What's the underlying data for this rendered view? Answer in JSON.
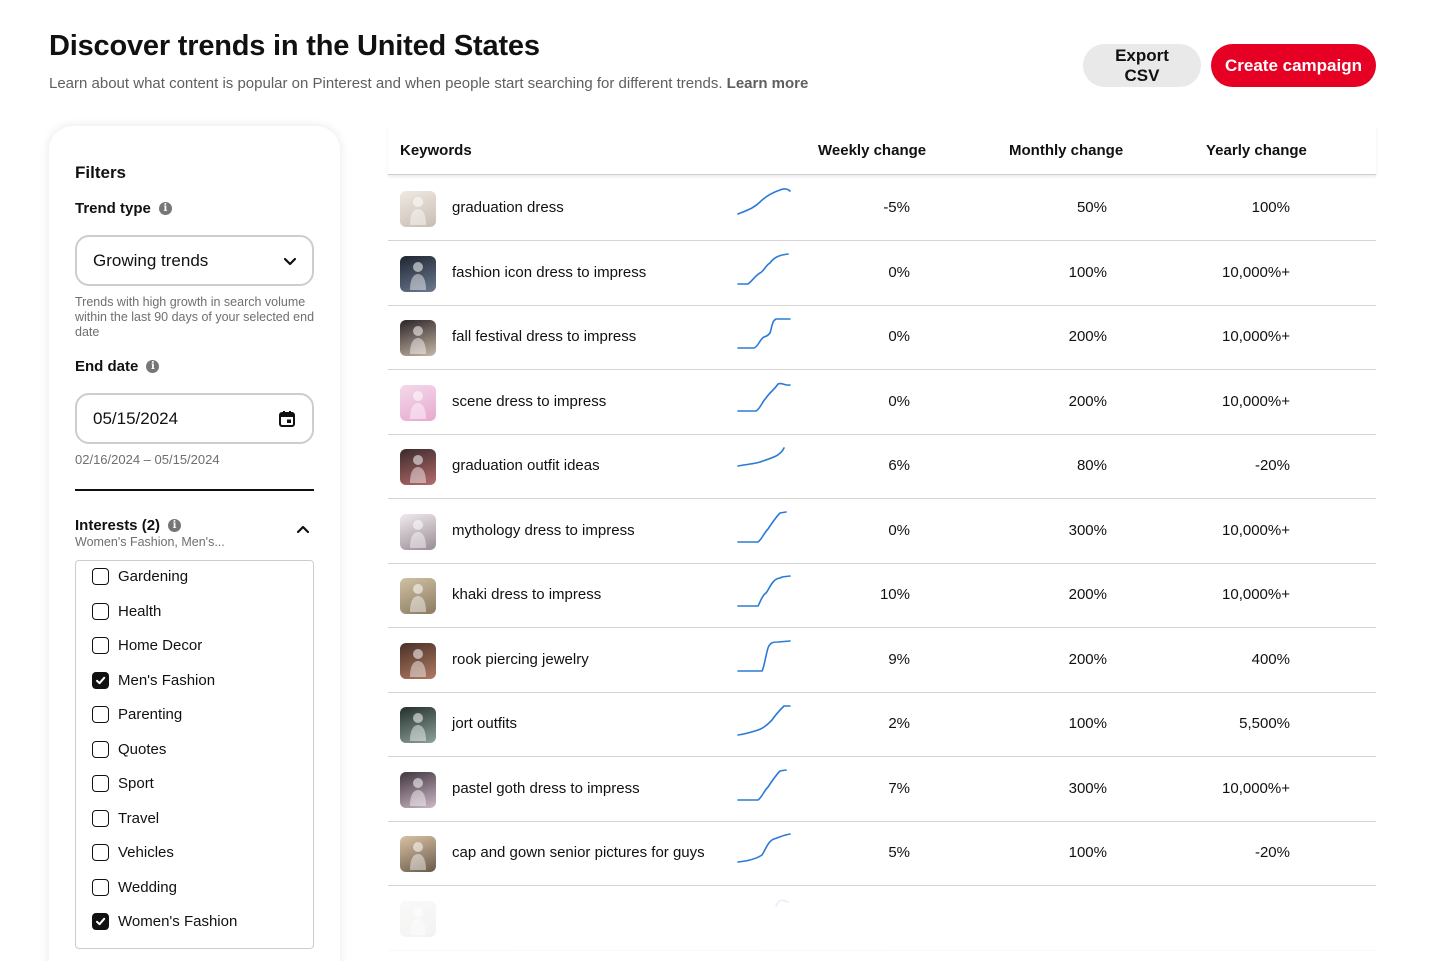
{
  "header": {
    "title": "Discover trends in the United States",
    "subtitle": "Learn about what content is popular on Pinterest and when people start searching for different trends.",
    "learn_more": "Learn more"
  },
  "actions": {
    "export_label": "Export CSV",
    "create_label": "Create campaign"
  },
  "colors": {
    "brand_red": "#e60023",
    "sparkline": "#2b7bd6"
  },
  "filters": {
    "title": "Filters",
    "trend_type_label": "Trend type",
    "trend_type_value": "Growing trends",
    "trend_type_help": "Trends with high growth in search volume within the last 90 days of your selected end date",
    "end_date_label": "End date",
    "end_date_value": "05/15/2024",
    "date_range": "02/16/2024 – 05/15/2024",
    "interests_label": "Interests (2)",
    "interests_summary": "Women's Fashion, Men's...",
    "interests": [
      {
        "label": "Gardening",
        "checked": false
      },
      {
        "label": "Health",
        "checked": false
      },
      {
        "label": "Home Decor",
        "checked": false
      },
      {
        "label": "Men's Fashion",
        "checked": true
      },
      {
        "label": "Parenting",
        "checked": false
      },
      {
        "label": "Quotes",
        "checked": false
      },
      {
        "label": "Sport",
        "checked": false
      },
      {
        "label": "Travel",
        "checked": false
      },
      {
        "label": "Vehicles",
        "checked": false
      },
      {
        "label": "Wedding",
        "checked": false
      },
      {
        "label": "Women's Fashion",
        "checked": true
      }
    ]
  },
  "table": {
    "columns": {
      "keywords": "Keywords",
      "weekly": "Weekly change",
      "monthly": "Monthly change",
      "yearly": "Yearly change"
    },
    "rows": [
      {
        "keyword": "graduation dress",
        "weekly": "-5%",
        "monthly": "50%",
        "yearly": "100%"
      },
      {
        "keyword": "fashion icon dress to impress",
        "weekly": "0%",
        "monthly": "100%",
        "yearly": "10,000%+"
      },
      {
        "keyword": "fall festival dress to impress",
        "weekly": "0%",
        "monthly": "200%",
        "yearly": "10,000%+"
      },
      {
        "keyword": "scene dress to impress",
        "weekly": "0%",
        "monthly": "200%",
        "yearly": "10,000%+"
      },
      {
        "keyword": "graduation outfit ideas",
        "weekly": "6%",
        "monthly": "80%",
        "yearly": "-20%"
      },
      {
        "keyword": "mythology dress to impress",
        "weekly": "0%",
        "monthly": "300%",
        "yearly": "10,000%+"
      },
      {
        "keyword": "khaki dress to impress",
        "weekly": "10%",
        "monthly": "200%",
        "yearly": "10,000%+"
      },
      {
        "keyword": "rook piercing jewelry",
        "weekly": "9%",
        "monthly": "200%",
        "yearly": "400%"
      },
      {
        "keyword": "jort outfits",
        "weekly": "2%",
        "monthly": "100%",
        "yearly": "5,500%"
      },
      {
        "keyword": "pastel goth dress to impress",
        "weekly": "7%",
        "monthly": "300%",
        "yearly": "10,000%+"
      },
      {
        "keyword": "cap and gown senior pictures for guys",
        "weekly": "5%",
        "monthly": "100%",
        "yearly": "-20%"
      },
      {
        "keyword": "",
        "weekly": "",
        "monthly": "",
        "yearly": ""
      }
    ]
  }
}
